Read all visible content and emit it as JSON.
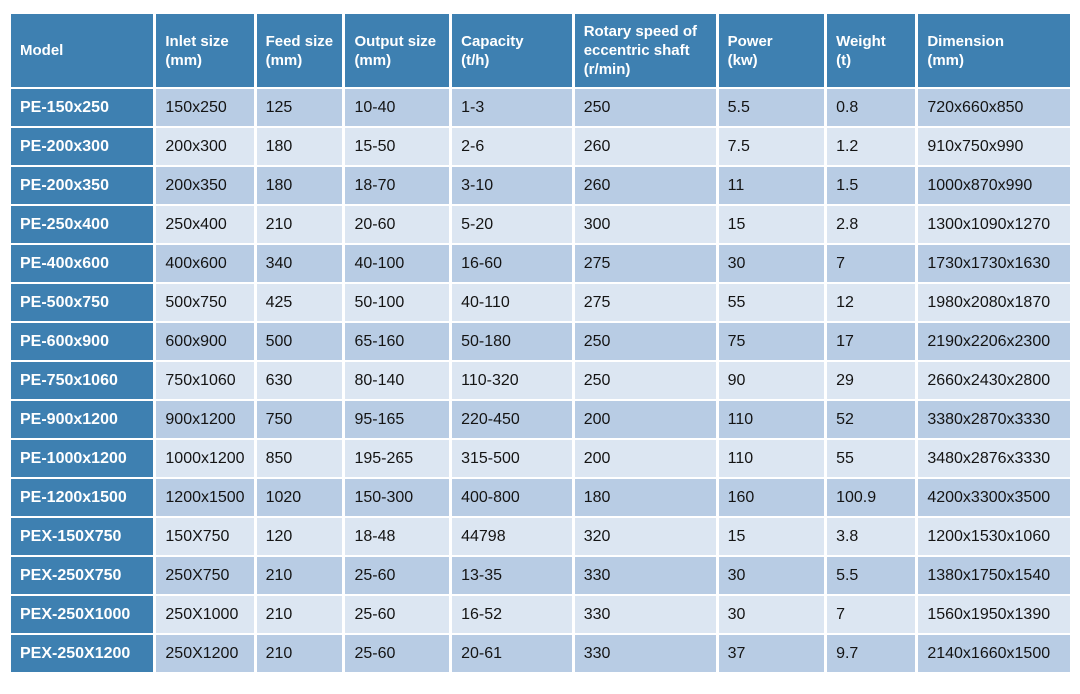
{
  "theme": {
    "header_bg": "#3e80b1",
    "row_band_dark": "#b8cce4",
    "row_band_light": "#dce6f2",
    "grid_border": "#ffffff",
    "header_text": "#ffffff",
    "body_text": "#141414"
  },
  "table": {
    "columns": [
      {
        "id": "model",
        "label": "Model"
      },
      {
        "id": "inlet-size",
        "label": "Inlet size\n(mm)"
      },
      {
        "id": "feed-size",
        "label": "Feed size\n(mm)"
      },
      {
        "id": "output-size",
        "label": "Output size\n(mm)"
      },
      {
        "id": "capacity",
        "label": "Capacity\n(t/h)"
      },
      {
        "id": "rotary-speed",
        "label": "Rotary speed of\neccentric shaft\n(r/min)"
      },
      {
        "id": "power",
        "label": "Power\n(kw)"
      },
      {
        "id": "weight",
        "label": "Weight\n(t)"
      },
      {
        "id": "dimension",
        "label": "Dimension\n(mm)"
      }
    ],
    "rows": [
      [
        "PE-150x250",
        "150x250",
        "125",
        "10-40",
        "1-3",
        "250",
        "5.5",
        "0.8",
        "720x660x850"
      ],
      [
        "PE-200x300",
        "200x300",
        "180",
        "15-50",
        "2-6",
        "260",
        "7.5",
        "1.2",
        "910x750x990"
      ],
      [
        "PE-200x350",
        "200x350",
        "180",
        "18-70",
        "3-10",
        "260",
        "11",
        "1.5",
        "1000x870x990"
      ],
      [
        "PE-250x400",
        "250x400",
        "210",
        "20-60",
        "5-20",
        "300",
        "15",
        "2.8",
        "1300x1090x1270"
      ],
      [
        "PE-400x600",
        "400x600",
        "340",
        "40-100",
        "16-60",
        "275",
        "30",
        "7",
        "1730x1730x1630"
      ],
      [
        "PE-500x750",
        "500x750",
        "425",
        "50-100",
        "40-110",
        "275",
        "55",
        "12",
        "1980x2080x1870"
      ],
      [
        "PE-600x900",
        "600x900",
        "500",
        "65-160",
        "50-180",
        "250",
        "75",
        "17",
        "2190x2206x2300"
      ],
      [
        "PE-750x1060",
        "750x1060",
        "630",
        "80-140",
        "110-320",
        "250",
        "90",
        "29",
        "2660x2430x2800"
      ],
      [
        "PE-900x1200",
        "900x1200",
        "750",
        "95-165",
        "220-450",
        "200",
        "110",
        "52",
        "3380x2870x3330"
      ],
      [
        "PE-1000x1200",
        "1000x1200",
        "850",
        "195-265",
        "315-500",
        "200",
        "110",
        "55",
        "3480x2876x3330"
      ],
      [
        "PE-1200x1500",
        "1200x1500",
        "1020",
        "150-300",
        "400-800",
        "180",
        "160",
        "100.9",
        "4200x3300x3500"
      ],
      [
        "PEX-150X750",
        "150X750",
        "120",
        "18-48",
        "44798",
        "320",
        "15",
        "3.8",
        "1200x1530x1060"
      ],
      [
        "PEX-250X750",
        "250X750",
        "210",
        "25-60",
        "13-35",
        "330",
        "30",
        "5.5",
        "1380x1750x1540"
      ],
      [
        "PEX-250X1000",
        "250X1000",
        "210",
        "25-60",
        "16-52",
        "330",
        "30",
        "7",
        "1560x1950x1390"
      ],
      [
        "PEX-250X1200",
        "250X1200",
        "210",
        "25-60",
        "20-61",
        "330",
        "37",
        "9.7",
        "2140x1660x1500"
      ]
    ]
  }
}
